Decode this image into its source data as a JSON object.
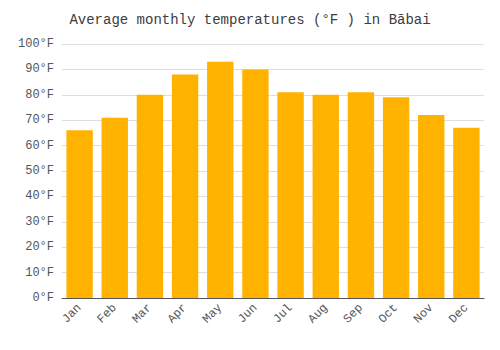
{
  "chart_data": {
    "type": "bar",
    "title": "Average monthly temperatures (°F ) in Bābai",
    "categories": [
      "Jan",
      "Feb",
      "Mar",
      "Apr",
      "May",
      "Jun",
      "Jul",
      "Aug",
      "Sep",
      "Oct",
      "Nov",
      "Dec"
    ],
    "values": [
      66,
      71,
      80,
      88,
      93,
      90,
      81,
      80,
      81,
      79,
      72,
      67
    ],
    "color": "#FFB300",
    "ylim": [
      0,
      100
    ],
    "yticks": [
      {
        "value": 0,
        "label": "0°F"
      },
      {
        "value": 10,
        "label": "10°F"
      },
      {
        "value": 20,
        "label": "20°F"
      },
      {
        "value": 30,
        "label": "30°F"
      },
      {
        "value": 40,
        "label": "40°F"
      },
      {
        "value": 50,
        "label": "50°F"
      },
      {
        "value": 60,
        "label": "60°F"
      },
      {
        "value": 70,
        "label": "70°F"
      },
      {
        "value": 80,
        "label": "80°F"
      },
      {
        "value": 90,
        "label": "90°F"
      },
      {
        "value": 100,
        "label": "100°F"
      }
    ],
    "grid": true
  }
}
